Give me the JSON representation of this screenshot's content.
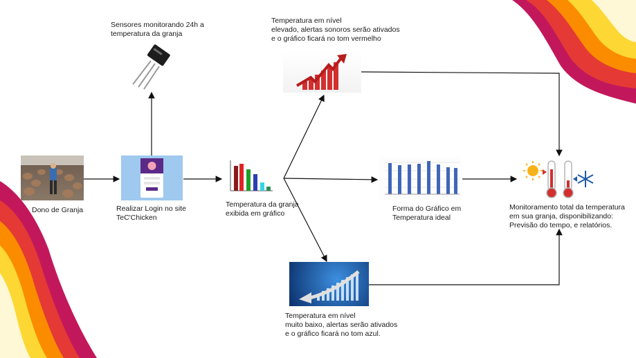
{
  "nodes": {
    "owner": {
      "label": "Dono de Granja"
    },
    "login": {
      "label": "Realizar Login no site\nTeC'Chicken"
    },
    "sensors": {
      "label": "Sensores monitorando 24h a\ntemperatura da granja"
    },
    "chart": {
      "label": "Temperatura da granja\nexibida em gráfico"
    },
    "high": {
      "label": "Temperatura em nível\nelevado, alertas sonoros serão ativados\ne o gráfico ficará no tom vermelho"
    },
    "ideal": {
      "label": "Forma do Gráfico em\nTemperatura ideal"
    },
    "low": {
      "label": "Temperatura em nível\nmuito baixo, alertas serão ativados\ne o gráfico ficará no tom azul."
    },
    "monitor": {
      "label": "Monitoramento total da temperatura\nem sua granja, disponibilizando:\nPrevisão do tempo, e relatórios."
    }
  },
  "colors": {
    "arrow": "#111111",
    "wave_magenta": "#c2185b",
    "wave_red": "#e53935",
    "wave_orange": "#fb8c00",
    "wave_yellow": "#fdd835",
    "wave_cream": "#fff8d6",
    "bar_blue": "#3f66b8",
    "alert_red": "#d32f2f",
    "cold_blue": "#1e5aa8"
  }
}
